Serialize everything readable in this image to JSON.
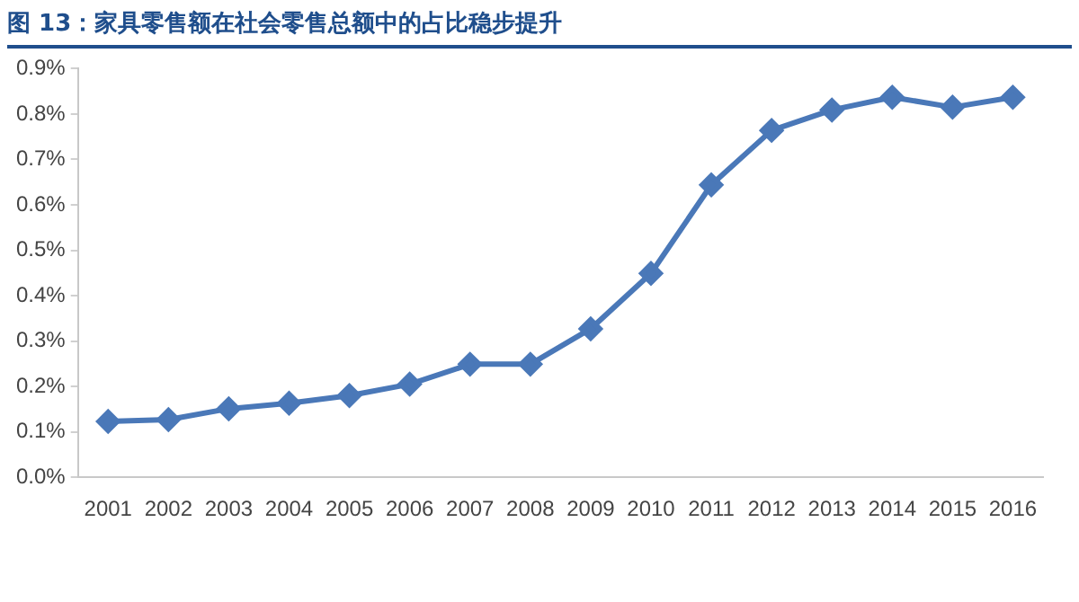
{
  "chart_data": {
    "type": "line",
    "title": "图 13：家具零售额在社会零售总额中的占比稳步提升",
    "categories": [
      "2001",
      "2002",
      "2003",
      "2004",
      "2005",
      "2006",
      "2007",
      "2008",
      "2009",
      "2010",
      "2011",
      "2012",
      "2013",
      "2014",
      "2015",
      "2016"
    ],
    "series": [
      {
        "color": "#4a78b8",
        "values": [
          0.123,
          0.127,
          0.151,
          0.163,
          0.18,
          0.205,
          0.249,
          0.249,
          0.327,
          0.449,
          0.644,
          0.764,
          0.809,
          0.837,
          0.815,
          0.837
        ]
      }
    ],
    "ylim": [
      0,
      0.9
    ],
    "yticks": [
      {
        "value": 0,
        "label": "0.0%"
      },
      {
        "value": 0.1,
        "label": "0.1%"
      },
      {
        "value": 0.2,
        "label": "0.2%"
      },
      {
        "value": 0.3,
        "label": "0.3%"
      },
      {
        "value": 0.4,
        "label": "0.4%"
      },
      {
        "value": 0.5,
        "label": "0.5%"
      },
      {
        "value": 0.6,
        "label": "0.6%"
      },
      {
        "value": 0.7,
        "label": "0.7%"
      },
      {
        "value": 0.8,
        "label": "0.8%"
      },
      {
        "value": 0.9,
        "label": "0.9%"
      }
    ],
    "grid": false,
    "legend": false,
    "marker": "diamond",
    "line_style": "solid"
  }
}
